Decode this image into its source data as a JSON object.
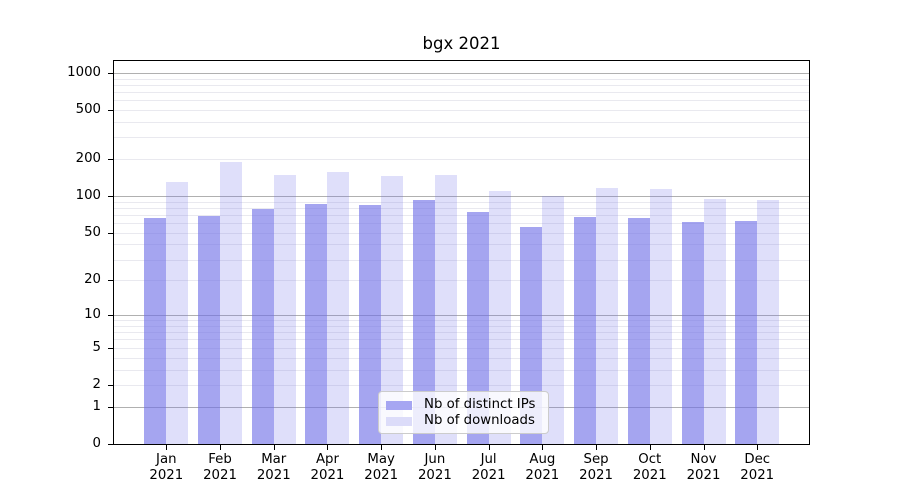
{
  "title": "bgx 2021",
  "chart_data": {
    "type": "bar",
    "title": "bgx 2021",
    "categories": [
      "Jan 2021",
      "Feb 2021",
      "Mar 2021",
      "Apr 2021",
      "May 2021",
      "Jun 2021",
      "Jul 2021",
      "Aug 2021",
      "Sep 2021",
      "Oct 2021",
      "Nov 2021",
      "Dec 2021"
    ],
    "series": [
      {
        "name": "Nb of distinct IPs",
        "values": [
          66,
          69,
          78,
          86,
          85,
          92,
          74,
          56,
          67,
          66,
          61,
          62
        ],
        "fill": "rgba(110,110,231,0.62)",
        "legend_swatch": "#a6a6f2"
      },
      {
        "name": "Nb of downloads",
        "values": [
          130,
          190,
          149,
          158,
          146,
          149,
          111,
          100,
          116,
          115,
          94,
          93
        ],
        "fill": "rgba(110,110,231,0.22)",
        "legend_swatch": "#dcdcf9"
      }
    ],
    "yscale": "log1p",
    "ylim": [
      0,
      1270
    ],
    "yticks": [
      0,
      1,
      2,
      5,
      10,
      20,
      50,
      100,
      200,
      500,
      1000
    ],
    "grid": true,
    "legend_position": "lower center"
  },
  "colors": {
    "background": "#ffffff",
    "axis": "#000000",
    "major_grid": "#b0b0b0",
    "minor_grid": "#e9e9ef",
    "legend_border": "#cccccc",
    "legend_bg": "rgba(255,255,255,0.8)",
    "bar_dark": "#a6a6f2",
    "bar_light": "#dcdcf9"
  }
}
